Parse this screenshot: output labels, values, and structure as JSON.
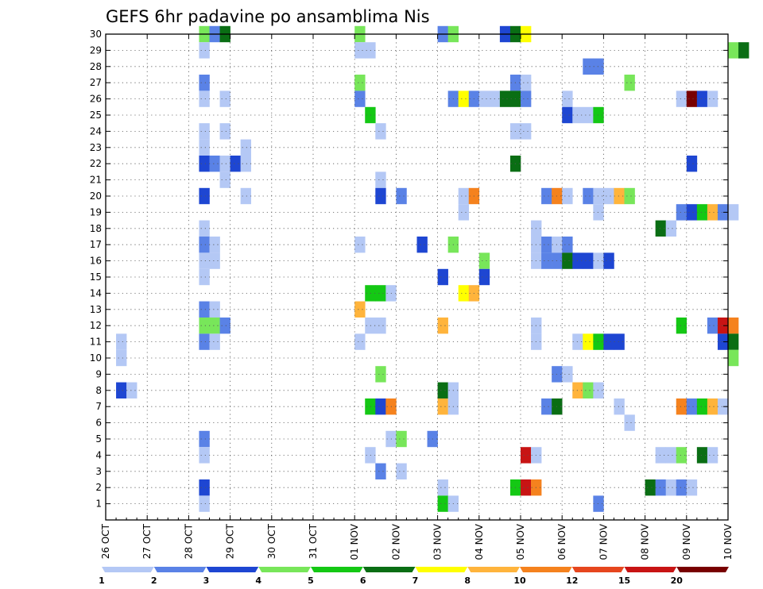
{
  "chart_data": {
    "type": "heatmap",
    "title": "GEFS 6hr padavine po ansamblima Nis",
    "xlabel": "",
    "ylabel": "",
    "x_start": "26 OCT 00Z",
    "x_end": "10 NOV 00Z",
    "x_step_hours": 6,
    "x_tick_labels": [
      "26 OCT",
      "27 OCT",
      "28 OCT",
      "29 OCT",
      "30 OCT",
      "31 OCT",
      "01 NOV",
      "02 NOV",
      "03 NOV",
      "04 NOV",
      "05 NOV",
      "06 NOV",
      "07 NOV",
      "08 NOV",
      "09 NOV",
      "10 NOV"
    ],
    "y_tick_labels": [
      "1",
      "2",
      "3",
      "4",
      "5",
      "6",
      "7",
      "8",
      "9",
      "10",
      "11",
      "12",
      "13",
      "14",
      "15",
      "16",
      "17",
      "18",
      "19",
      "20",
      "21",
      "22",
      "23",
      "24",
      "25",
      "26",
      "27",
      "28",
      "29",
      "30"
    ],
    "ylim": [
      0,
      30
    ],
    "grid": true,
    "colorbar": {
      "levels": [
        "1",
        "2",
        "3",
        "4",
        "5",
        "6",
        "7",
        "8",
        "10",
        "12",
        "15",
        "20"
      ],
      "colors": [
        "#b4c8f5",
        "#5a82e6",
        "#1e46d2",
        "#78e65a",
        "#14c814",
        "#0a6e14",
        "#ffff00",
        "#ffb43c",
        "#f5821e",
        "#e6461e",
        "#c81414",
        "#780000"
      ]
    },
    "cells": [
      {
        "m": 30,
        "c": [
          [
            9,
            4
          ],
          [
            10,
            2
          ],
          [
            11,
            6
          ],
          [
            24,
            4
          ],
          [
            32,
            2
          ],
          [
            33,
            4
          ],
          [
            38,
            3
          ],
          [
            39,
            6
          ],
          [
            40,
            7
          ]
        ]
      },
      {
        "m": 29,
        "c": [
          [
            9,
            1
          ],
          [
            24,
            1
          ],
          [
            25,
            1
          ],
          [
            60,
            4
          ],
          [
            61,
            6
          ]
        ]
      },
      {
        "m": 28,
        "c": [
          [
            46,
            2
          ],
          [
            47,
            2
          ]
        ]
      },
      {
        "m": 27,
        "c": [
          [
            9,
            2
          ],
          [
            24,
            4
          ],
          [
            39,
            2
          ],
          [
            40,
            1
          ],
          [
            50,
            4
          ]
        ]
      },
      {
        "m": 26,
        "c": [
          [
            9,
            1
          ],
          [
            11,
            1
          ],
          [
            24,
            2
          ],
          [
            33,
            2
          ],
          [
            34,
            7
          ],
          [
            35,
            2
          ],
          [
            36,
            1
          ],
          [
            37,
            1
          ],
          [
            38,
            6
          ],
          [
            39,
            6
          ],
          [
            40,
            2
          ],
          [
            44,
            1
          ],
          [
            55,
            1
          ],
          [
            56,
            12
          ],
          [
            57,
            3
          ],
          [
            58,
            1
          ]
        ]
      },
      {
        "m": 25,
        "c": [
          [
            25,
            5
          ],
          [
            44,
            3
          ],
          [
            45,
            1
          ],
          [
            46,
            1
          ],
          [
            47,
            5
          ]
        ]
      },
      {
        "m": 24,
        "c": [
          [
            9,
            1
          ],
          [
            11,
            1
          ],
          [
            26,
            1
          ],
          [
            39,
            1
          ],
          [
            40,
            1
          ]
        ]
      },
      {
        "m": 23,
        "c": [
          [
            9,
            1
          ],
          [
            13,
            1
          ]
        ]
      },
      {
        "m": 22,
        "c": [
          [
            9,
            3
          ],
          [
            10,
            2
          ],
          [
            11,
            1
          ],
          [
            12,
            3
          ],
          [
            13,
            1
          ],
          [
            39,
            6
          ],
          [
            56,
            3
          ]
        ]
      },
      {
        "m": 21,
        "c": [
          [
            11,
            1
          ],
          [
            26,
            1
          ]
        ]
      },
      {
        "m": 20,
        "c": [
          [
            9,
            3
          ],
          [
            13,
            1
          ],
          [
            26,
            3
          ],
          [
            28,
            2
          ],
          [
            34,
            1
          ],
          [
            35,
            9
          ],
          [
            42,
            2
          ],
          [
            43,
            9
          ],
          [
            44,
            1
          ],
          [
            46,
            2
          ],
          [
            47,
            1
          ],
          [
            48,
            1
          ],
          [
            49,
            8
          ],
          [
            50,
            4
          ]
        ]
      },
      {
        "m": 19,
        "c": [
          [
            34,
            1
          ],
          [
            47,
            1
          ],
          [
            55,
            2
          ],
          [
            56,
            3
          ],
          [
            57,
            5
          ],
          [
            58,
            8
          ],
          [
            59,
            2
          ],
          [
            60,
            1
          ]
        ]
      },
      {
        "m": 18,
        "c": [
          [
            9,
            1
          ],
          [
            41,
            1
          ],
          [
            53,
            6
          ],
          [
            54,
            1
          ]
        ]
      },
      {
        "m": 17,
        "c": [
          [
            9,
            2
          ],
          [
            10,
            1
          ],
          [
            24,
            1
          ],
          [
            30,
            3
          ],
          [
            33,
            4
          ],
          [
            41,
            1
          ],
          [
            42,
            2
          ],
          [
            43,
            1
          ],
          [
            44,
            2
          ]
        ]
      },
      {
        "m": 16,
        "c": [
          [
            9,
            1
          ],
          [
            10,
            1
          ],
          [
            36,
            4
          ],
          [
            41,
            1
          ],
          [
            42,
            2
          ],
          [
            43,
            2
          ],
          [
            44,
            6
          ],
          [
            45,
            3
          ],
          [
            46,
            3
          ],
          [
            47,
            1
          ],
          [
            48,
            3
          ]
        ]
      },
      {
        "m": 15,
        "c": [
          [
            9,
            1
          ],
          [
            32,
            3
          ],
          [
            36,
            3
          ]
        ]
      },
      {
        "m": 14,
        "c": [
          [
            25,
            5
          ],
          [
            26,
            5
          ],
          [
            27,
            1
          ],
          [
            34,
            7
          ],
          [
            35,
            8
          ]
        ]
      },
      {
        "m": 13,
        "c": [
          [
            9,
            2
          ],
          [
            10,
            1
          ],
          [
            24,
            8
          ]
        ]
      },
      {
        "m": 12,
        "c": [
          [
            9,
            4
          ],
          [
            10,
            4
          ],
          [
            11,
            2
          ],
          [
            25,
            1
          ],
          [
            26,
            1
          ],
          [
            32,
            8
          ],
          [
            41,
            1
          ],
          [
            55,
            5
          ],
          [
            58,
            2
          ],
          [
            59,
            11
          ],
          [
            60,
            9
          ]
        ]
      },
      {
        "m": 11,
        "c": [
          [
            1,
            1
          ],
          [
            9,
            2
          ],
          [
            10,
            1
          ],
          [
            24,
            1
          ],
          [
            41,
            1
          ],
          [
            45,
            1
          ],
          [
            46,
            7
          ],
          [
            47,
            5
          ],
          [
            48,
            3
          ],
          [
            49,
            3
          ],
          [
            59,
            3
          ],
          [
            60,
            6
          ]
        ]
      },
      {
        "m": 10,
        "c": [
          [
            1,
            1
          ],
          [
            60,
            4
          ]
        ]
      },
      {
        "m": 9,
        "c": [
          [
            26,
            4
          ],
          [
            43,
            2
          ],
          [
            44,
            1
          ]
        ]
      },
      {
        "m": 8,
        "c": [
          [
            1,
            3
          ],
          [
            2,
            1
          ],
          [
            32,
            6
          ],
          [
            33,
            1
          ],
          [
            45,
            8
          ],
          [
            46,
            4
          ],
          [
            47,
            1
          ]
        ]
      },
      {
        "m": 7,
        "c": [
          [
            25,
            5
          ],
          [
            26,
            3
          ],
          [
            27,
            9
          ],
          [
            32,
            8
          ],
          [
            33,
            1
          ],
          [
            42,
            2
          ],
          [
            43,
            6
          ],
          [
            49,
            1
          ],
          [
            55,
            9
          ],
          [
            56,
            2
          ],
          [
            57,
            5
          ],
          [
            58,
            8
          ],
          [
            59,
            1
          ]
        ]
      },
      {
        "m": 6,
        "c": [
          [
            50,
            1
          ]
        ]
      },
      {
        "m": 5,
        "c": [
          [
            9,
            2
          ],
          [
            27,
            1
          ],
          [
            28,
            4
          ],
          [
            31,
            2
          ]
        ]
      },
      {
        "m": 4,
        "c": [
          [
            9,
            1
          ],
          [
            25,
            1
          ],
          [
            40,
            11
          ],
          [
            41,
            1
          ],
          [
            53,
            1
          ],
          [
            54,
            1
          ],
          [
            55,
            4
          ],
          [
            57,
            6
          ],
          [
            58,
            1
          ]
        ]
      },
      {
        "m": 3,
        "c": [
          [
            26,
            2
          ],
          [
            28,
            1
          ]
        ]
      },
      {
        "m": 2,
        "c": [
          [
            9,
            3
          ],
          [
            32,
            1
          ],
          [
            39,
            5
          ],
          [
            40,
            11
          ],
          [
            41,
            9
          ],
          [
            52,
            6
          ],
          [
            53,
            2
          ],
          [
            54,
            1
          ],
          [
            55,
            2
          ],
          [
            56,
            1
          ]
        ]
      },
      {
        "m": 1,
        "c": [
          [
            9,
            1
          ],
          [
            32,
            5
          ],
          [
            33,
            1
          ],
          [
            47,
            2
          ]
        ]
      }
    ]
  }
}
